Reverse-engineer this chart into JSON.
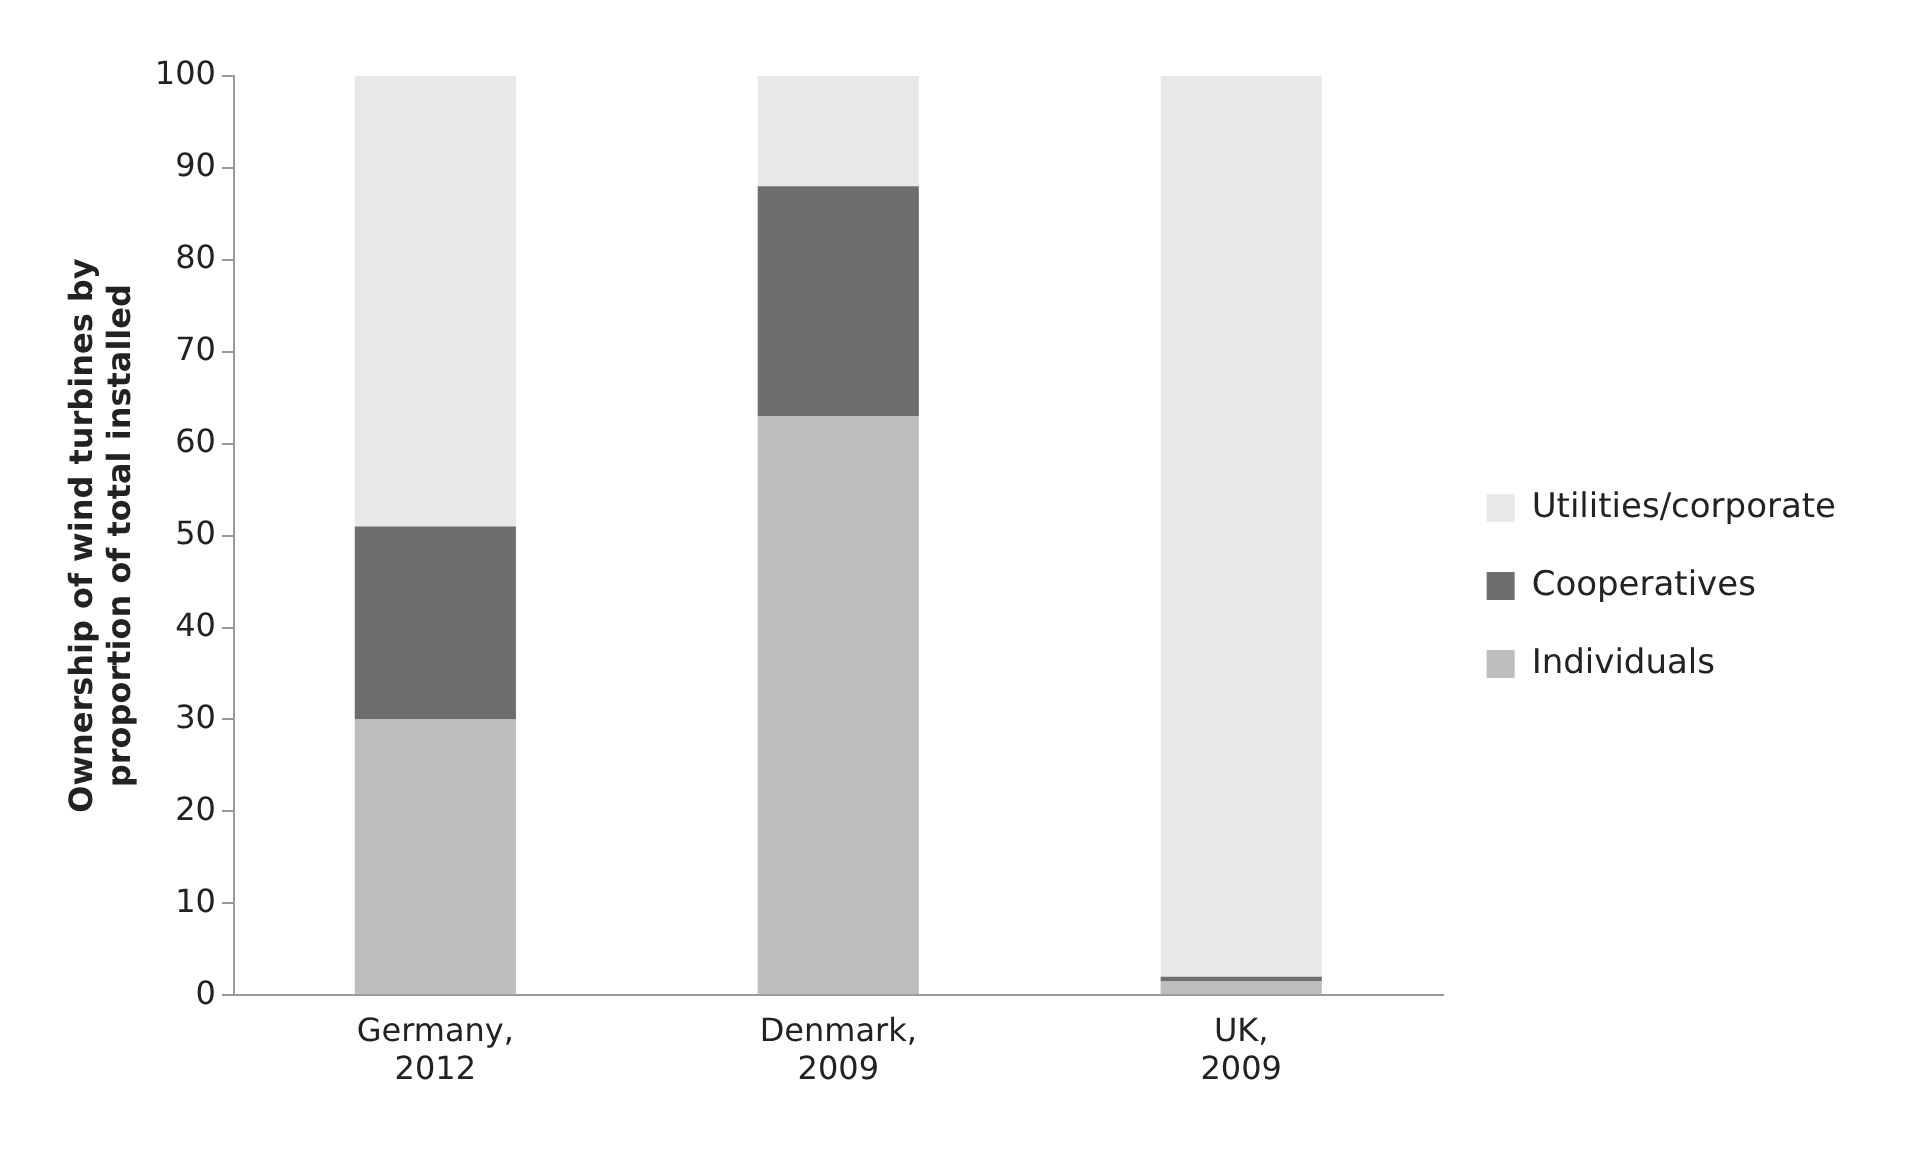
{
  "chart_data": {
    "type": "bar",
    "stacked": true,
    "ylabel": "Ownership of wind turbines by proportion of total installed",
    "categories": [
      "Germany, 2012",
      "Denmark, 2009",
      "UK, 2009"
    ],
    "series": [
      {
        "name": "Individuals",
        "color": "#bdbdbd",
        "values": [
          30,
          63,
          1.5
        ]
      },
      {
        "name": "Cooperatives",
        "color": "#6e6e6e",
        "values": [
          21,
          25,
          0.5
        ]
      },
      {
        "name": "Utilities/corporate",
        "color": "#e8e8e8",
        "values": [
          49,
          12,
          98
        ]
      }
    ],
    "ylim": [
      0,
      100
    ],
    "yticks": [
      0,
      10,
      20,
      30,
      40,
      50,
      60,
      70,
      80,
      90,
      100
    ],
    "grid": false,
    "legend": "right"
  }
}
